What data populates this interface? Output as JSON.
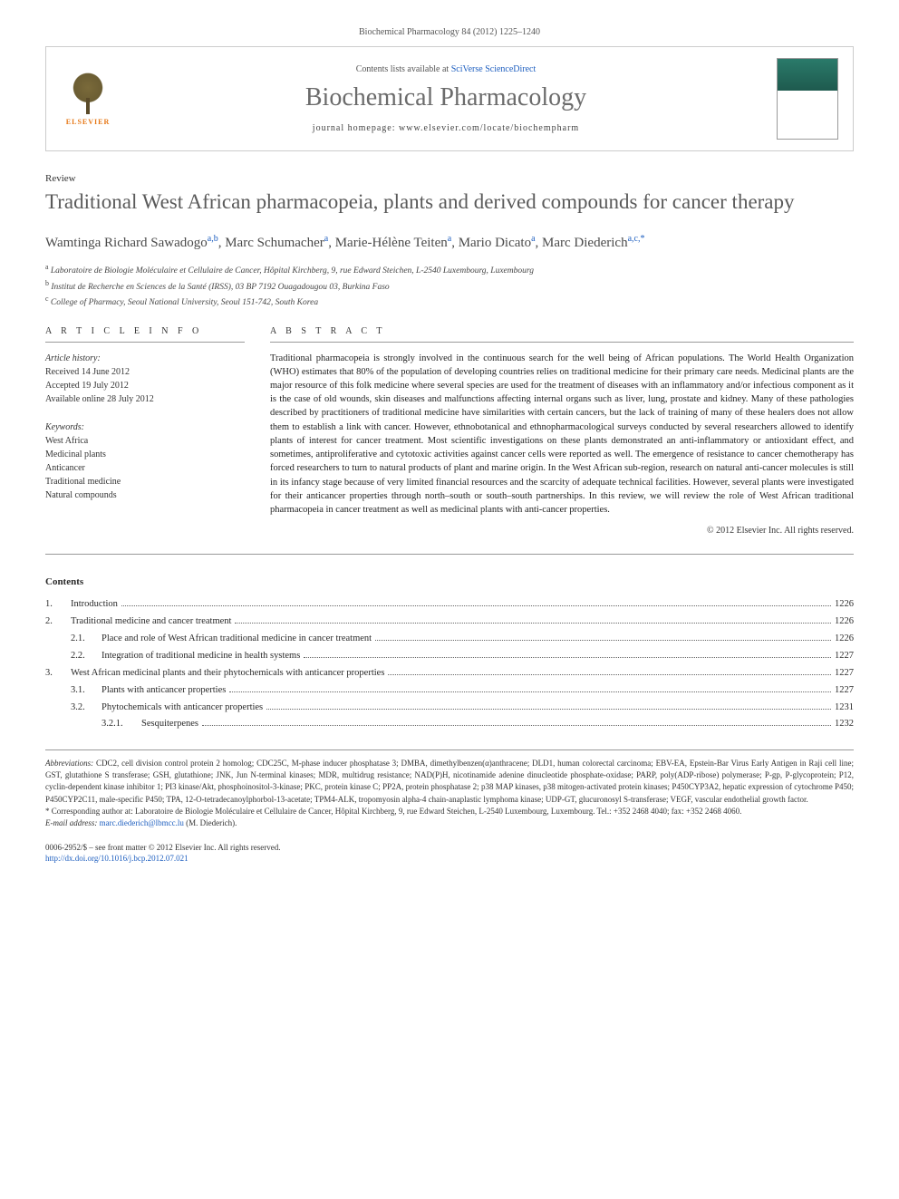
{
  "citation": "Biochemical Pharmacology 84 (2012) 1225–1240",
  "header": {
    "contents_prefix": "Contents lists available at ",
    "contents_link": "SciVerse ScienceDirect",
    "journal_name": "Biochemical Pharmacology",
    "homepage_prefix": "journal homepage: ",
    "homepage_url": "www.elsevier.com/locate/biochempharm",
    "publisher_label": "ELSEVIER"
  },
  "article": {
    "type": "Review",
    "title": "Traditional West African pharmacopeia, plants and derived compounds for cancer therapy"
  },
  "authors": [
    {
      "name": "Wamtinga Richard Sawadogo",
      "sup": "a,b"
    },
    {
      "name": "Marc Schumacher",
      "sup": "a"
    },
    {
      "name": "Marie-Hélène Teiten",
      "sup": "a"
    },
    {
      "name": "Mario Dicato",
      "sup": "a"
    },
    {
      "name": "Marc Diederich",
      "sup": "a,c,*"
    }
  ],
  "affiliations": [
    {
      "sup": "a",
      "text": "Laboratoire de Biologie Moléculaire et Cellulaire de Cancer, Hôpital Kirchberg, 9, rue Edward Steichen, L-2540 Luxembourg, Luxembourg"
    },
    {
      "sup": "b",
      "text": "Institut de Recherche en Sciences de la Santé (IRSS), 03 BP 7192 Ouagadougou 03, Burkina Faso"
    },
    {
      "sup": "c",
      "text": "College of Pharmacy, Seoul National University, Seoul 151-742, South Korea"
    }
  ],
  "info": {
    "section_label": "A R T I C L E   I N F O",
    "history_label": "Article history:",
    "history": [
      "Received 14 June 2012",
      "Accepted 19 July 2012",
      "Available online 28 July 2012"
    ],
    "keywords_label": "Keywords:",
    "keywords": [
      "West Africa",
      "Medicinal plants",
      "Anticancer",
      "Traditional medicine",
      "Natural compounds"
    ]
  },
  "abstract": {
    "section_label": "A B S T R A C T",
    "text": "Traditional pharmacopeia is strongly involved in the continuous search for the well being of African populations. The World Health Organization (WHO) estimates that 80% of the population of developing countries relies on traditional medicine for their primary care needs. Medicinal plants are the major resource of this folk medicine where several species are used for the treatment of diseases with an inflammatory and/or infectious component as it is the case of old wounds, skin diseases and malfunctions affecting internal organs such as liver, lung, prostate and kidney. Many of these pathologies described by practitioners of traditional medicine have similarities with certain cancers, but the lack of training of many of these healers does not allow them to establish a link with cancer. However, ethnobotanical and ethnopharmacological surveys conducted by several researchers allowed to identify plants of interest for cancer treatment. Most scientific investigations on these plants demonstrated an anti-inflammatory or antioxidant effect, and sometimes, antiproliferative and cytotoxic activities against cancer cells were reported as well. The emergence of resistance to cancer chemotherapy has forced researchers to turn to natural products of plant and marine origin. In the West African sub-region, research on natural anti-cancer molecules is still in its infancy stage because of very limited financial resources and the scarcity of adequate technical facilities. However, several plants were investigated for their anticancer properties through north–south or south–south partnerships. In this review, we will review the role of West African traditional pharmacopeia in cancer treatment as well as medicinal plants with anti-cancer properties.",
    "copyright": "© 2012 Elsevier Inc. All rights reserved."
  },
  "contents": {
    "heading": "Contents",
    "items": [
      {
        "level": 0,
        "num": "1.",
        "label": "Introduction",
        "page": "1226"
      },
      {
        "level": 0,
        "num": "2.",
        "label": "Traditional medicine and cancer treatment",
        "page": "1226"
      },
      {
        "level": 1,
        "num": "2.1.",
        "label": "Place and role of West African traditional medicine in cancer treatment",
        "page": "1226"
      },
      {
        "level": 1,
        "num": "2.2.",
        "label": "Integration of traditional medicine in health systems",
        "page": "1227"
      },
      {
        "level": 0,
        "num": "3.",
        "label": "West African medicinal plants and their phytochemicals with anticancer properties",
        "page": "1227"
      },
      {
        "level": 1,
        "num": "3.1.",
        "label": "Plants with anticancer properties",
        "page": "1227"
      },
      {
        "level": 1,
        "num": "3.2.",
        "label": "Phytochemicals with anticancer properties",
        "page": "1231"
      },
      {
        "level": 2,
        "num": "3.2.1.",
        "label": "Sesquiterpenes",
        "page": "1232"
      }
    ]
  },
  "footnotes": {
    "abbrev_label": "Abbreviations:",
    "abbrev_text": "CDC2, cell division control protein 2 homolog; CDC25C, M-phase inducer phosphatase 3; DMBA, dimethylbenzen(α)anthracene; DLD1, human colorectal carcinoma; EBV-EA, Epstein-Bar Virus Early Antigen in Raji cell line; GST, glutathione S transferase; GSH, glutathione; JNK, Jun N-terminal kinases; MDR, multidrug resistance; NAD(P)H, nicotinamide adenine dinucleotide phosphate-oxidase; PARP, poly(ADP-ribose) polymerase; P-gp, P-glycoprotein; P12, cyclin-dependent kinase inhibitor 1; PI3 kinase/Akt, phosphoinositol-3-kinase; PKC, protein kinase C; PP2A, protein phosphatase 2; p38 MAP kinases, p38 mitogen-activated protein kinases; P450CYP3A2, hepatic expression of cytochrome P450; P450CYP2C11, male-specific P450; TPA, 12-O-tetradecanoylphorbol-13-acetate; TPM4-ALK, tropomyosin alpha-4 chain-anaplastic lymphoma kinase; UDP-GT, glucuronosyl S-transferase; VEGF, vascular endothelial growth factor.",
    "corr_label": "* Corresponding author at:",
    "corr_text": "Laboratoire de Biologie Moléculaire et Cellulaire de Cancer, Hôpital Kirchberg, 9, rue Edward Steichen, L-2540 Luxembourg, Luxembourg. Tel.: +352 2468 4040; fax: +352 2468 4060.",
    "email_label": "E-mail address:",
    "email": "marc.diederich@lbmcc.lu",
    "email_suffix": "(M. Diederich)."
  },
  "doi": {
    "line1": "0006-2952/$ – see front matter © 2012 Elsevier Inc. All rights reserved.",
    "link": "http://dx.doi.org/10.1016/j.bcp.2012.07.021"
  },
  "colors": {
    "link": "#2060c0",
    "text": "#2a2a2a",
    "muted": "#6b6b6b",
    "divider": "#999999",
    "elsevier_orange": "#e67817",
    "cover_teal": "#2a7a6a"
  },
  "typography": {
    "body_pt": 10.5,
    "title_pt": 23,
    "journal_pt": 28,
    "footnote_pt": 9,
    "author_pt": 15
  }
}
